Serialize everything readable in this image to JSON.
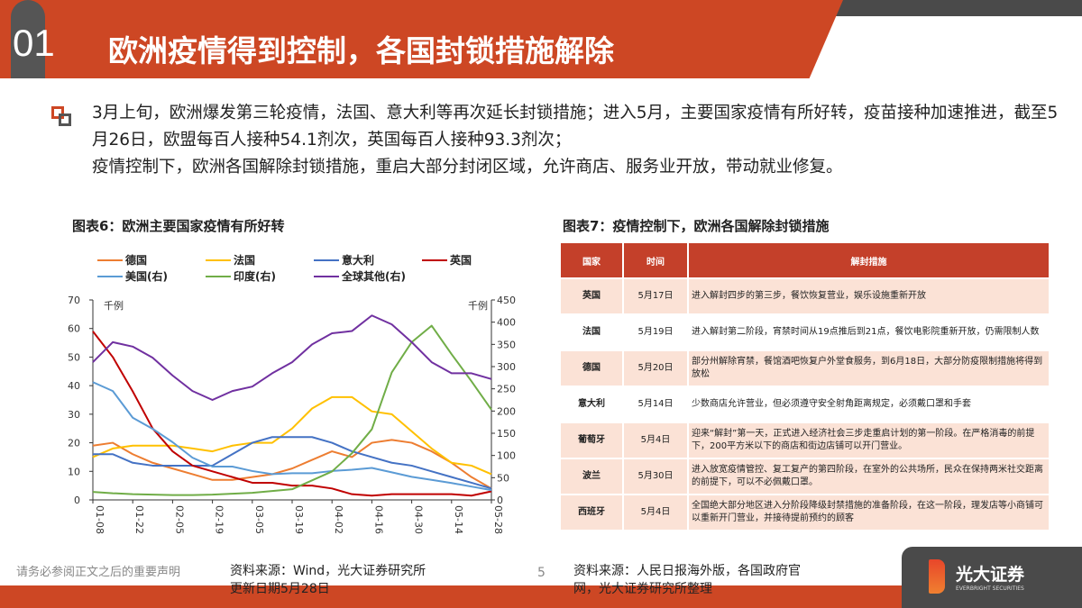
{
  "header": {
    "number": "01",
    "title": "欧洲疫情得到控制，各国封锁措施解除"
  },
  "summary": [
    "3月上旬，欧洲爆发第三轮疫情，法国、意大利等再次延长封锁措施；进入5月，主要国家疫情有所好转，疫苗接种加速推进，截至5月26日，欧盟每百人接种54.1剂次，英国每百人接种93.3剂次；",
    "疫情控制下，欧洲各国解除封锁措施，重启大部分封闭区域，允许商店、服务业开放，带动就业修复。"
  ],
  "figure6": {
    "title": "图表6：欧洲主要国家疫情有所好转",
    "source": "资料来源：Wind，光大证券研究所",
    "updated": "更新日期5月28日"
  },
  "figure7": {
    "title": "图表7：疫情控制下，欧洲各国解除封锁措施",
    "source_line1": "资料来源：人民日报海外版，各国政府官",
    "source_line2": "网，光大证券研究所整理"
  },
  "chart_data": {
    "type": "line",
    "left_unit": "千例",
    "right_unit": "千例",
    "ylim_left": [
      0,
      70
    ],
    "ylim_right": [
      0,
      450
    ],
    "yticks_left": [
      "0",
      "10",
      "20",
      "30",
      "40",
      "50",
      "60",
      "70"
    ],
    "yticks_right": [
      "0",
      "50",
      "100",
      "150",
      "200",
      "250",
      "300",
      "350",
      "400",
      "450"
    ],
    "x_ticks": [
      "01-08",
      "01-22",
      "02-05",
      "02-19",
      "03-05",
      "03-19",
      "04-02",
      "04-16",
      "04-30",
      "05-14",
      "05-28"
    ],
    "x": [
      "01-08",
      "01-15",
      "01-22",
      "01-29",
      "02-05",
      "02-12",
      "02-19",
      "02-26",
      "03-05",
      "03-12",
      "03-19",
      "03-26",
      "04-02",
      "04-09",
      "04-16",
      "04-23",
      "04-30",
      "05-07",
      "05-14",
      "05-21",
      "05-28"
    ],
    "series": [
      {
        "name": "德国",
        "axis": "left",
        "color": "#ed7d31",
        "values": [
          19,
          20,
          16,
          13,
          11,
          9,
          7,
          7,
          8,
          9,
          11,
          14,
          17,
          15,
          20,
          21,
          20,
          17,
          13,
          8,
          4
        ]
      },
      {
        "name": "法国",
        "axis": "left",
        "color": "#ffc000",
        "values": [
          15,
          18,
          19,
          19,
          19,
          18,
          17,
          19,
          20,
          20,
          25,
          32,
          36,
          36,
          31,
          30,
          24,
          18,
          13,
          12,
          9
        ]
      },
      {
        "name": "意大利",
        "axis": "left",
        "color": "#4472c4",
        "values": [
          16,
          16,
          13,
          12,
          12,
          12,
          12,
          16,
          20,
          22,
          22,
          22,
          20,
          17,
          15,
          13,
          12,
          10,
          8,
          6,
          4
        ]
      },
      {
        "name": "英国",
        "axis": "left",
        "color": "#c00000",
        "values": [
          59,
          50,
          38,
          25,
          17,
          12,
          10,
          8,
          6,
          6,
          5,
          5,
          4,
          2,
          1.5,
          2,
          2,
          2,
          2,
          1.5,
          3
        ]
      },
      {
        "name": "美国(右)",
        "axis": "right",
        "color": "#5b9bd5",
        "values": [
          265,
          245,
          185,
          160,
          130,
          95,
          75,
          75,
          65,
          58,
          60,
          60,
          65,
          68,
          72,
          62,
          52,
          45,
          38,
          30,
          22
        ]
      },
      {
        "name": "印度(右)",
        "axis": "right",
        "color": "#70ad47",
        "values": [
          18,
          15,
          13,
          12,
          11,
          11,
          12,
          14,
          16,
          20,
          24,
          44,
          64,
          105,
          159,
          287,
          355,
          392,
          328,
          267,
          203
        ]
      },
      {
        "name": "全球其他(右)",
        "axis": "right",
        "color": "#7030a0",
        "values": [
          310,
          355,
          345,
          320,
          280,
          245,
          225,
          245,
          255,
          285,
          310,
          350,
          375,
          380,
          415,
          395,
          355,
          310,
          285,
          285,
          272
        ]
      }
    ]
  },
  "table": {
    "headers": [
      "国家",
      "时间",
      "解封措施"
    ],
    "rows": [
      [
        "英国",
        "5月17日",
        "进入解封四步的第三步，餐饮恢复营业，娱乐设施重新开放"
      ],
      [
        "法国",
        "5月19日",
        "进入解封第二阶段，宵禁时间从19点推后到21点，餐饮电影院重新开放，仍需限制人数"
      ],
      [
        "德国",
        "5月20日",
        "部分州解除宵禁，餐馆酒吧恢复户外堂食服务，到6月18日，大部分防疫限制措施将得到放松"
      ],
      [
        "意大利",
        "5月14日",
        "少数商店允许营业，但必须遵守安全射角距离规定，必须戴口罩和手套"
      ],
      [
        "葡萄牙",
        "5月4日",
        "迎来“解封”第一天，正式进入经济社会三步走重启计划的第一阶段。在严格消毒的前提下，200平方米以下的商店和街边店铺可以开门营业。"
      ],
      [
        "波兰",
        "5月30日",
        "进入放宽疫情管控、复工复产的第四阶段，在室外的公共场所，民众在保持两米社交距离的前提下，可以不必佩戴口罩。"
      ],
      [
        "西班牙",
        "5月4日",
        "全国绝大部分地区进入分阶段降级封禁措施的准备阶段，在这一阶段，理发店等小商铺可以重新开门营业，并接待提前预约的顾客"
      ]
    ]
  },
  "footer": {
    "disclaimer": "请务必参阅正文之后的重要声明",
    "page": "5",
    "logo": "光大证券",
    "logo_sub": "EVERBRIGHT SECURITIES"
  }
}
